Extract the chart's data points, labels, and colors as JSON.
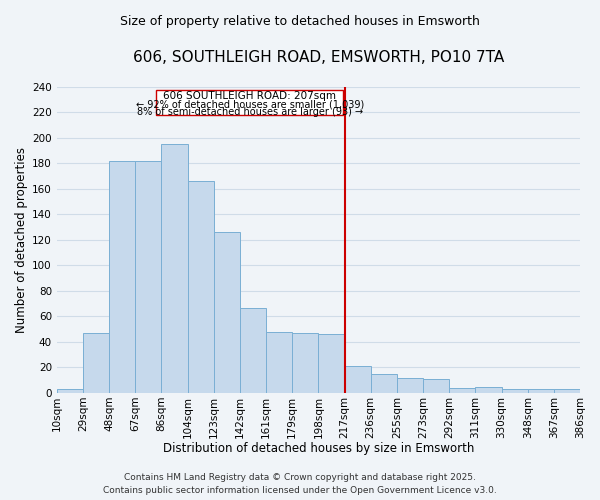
{
  "title": "606, SOUTHLEIGH ROAD, EMSWORTH, PO10 7TA",
  "subtitle": "Size of property relative to detached houses in Emsworth",
  "xlabel": "Distribution of detached houses by size in Emsworth",
  "ylabel": "Number of detached properties",
  "bar_labels": [
    "10sqm",
    "29sqm",
    "48sqm",
    "67sqm",
    "86sqm",
    "104sqm",
    "123sqm",
    "142sqm",
    "161sqm",
    "179sqm",
    "198sqm",
    "217sqm",
    "236sqm",
    "255sqm",
    "273sqm",
    "292sqm",
    "311sqm",
    "330sqm",
    "348sqm",
    "367sqm",
    "386sqm"
  ],
  "bar_values": [
    3,
    47,
    182,
    182,
    195,
    166,
    126,
    67,
    48,
    47,
    46,
    21,
    15,
    12,
    11,
    4,
    5,
    3,
    3,
    3
  ],
  "bar_color": "#c6d9ec",
  "bar_edge_color": "#7aafd4",
  "vline_color": "#cc0000",
  "vline_position": 10.5,
  "ylim": [
    0,
    240
  ],
  "yticks": [
    0,
    20,
    40,
    60,
    80,
    100,
    120,
    140,
    160,
    180,
    200,
    220,
    240
  ],
  "annotation_title": "606 SOUTHLEIGH ROAD: 207sqm",
  "annotation_line1": "← 92% of detached houses are smaller (1,039)",
  "annotation_line2": "8% of semi-detached houses are larger (93) →",
  "annotation_box_color": "#ffffff",
  "annotation_box_edge": "#cc0000",
  "footer1": "Contains HM Land Registry data © Crown copyright and database right 2025.",
  "footer2": "Contains public sector information licensed under the Open Government Licence v3.0.",
  "background_color": "#f0f4f8",
  "grid_color": "#d0dce8",
  "title_fontsize": 11,
  "subtitle_fontsize": 9,
  "axis_label_fontsize": 8.5,
  "tick_fontsize": 7.5,
  "annotation_fontsize": 7.5,
  "footer_fontsize": 6.5
}
